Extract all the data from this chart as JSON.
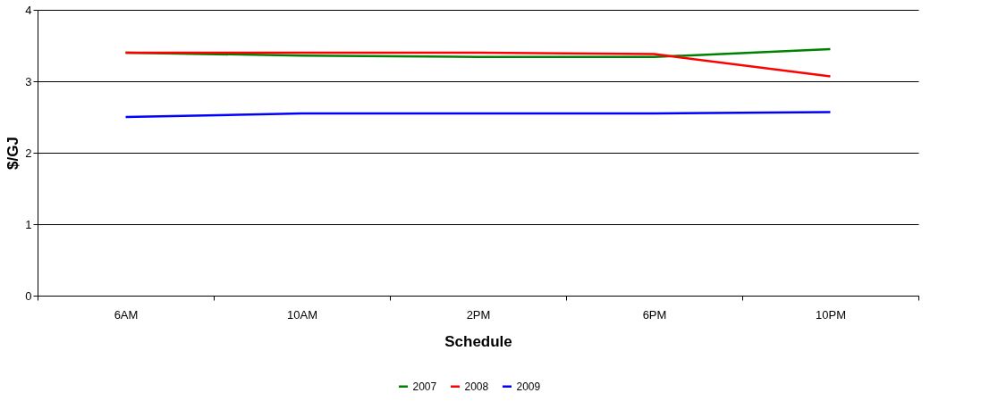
{
  "chart_data": {
    "type": "line",
    "xlabel": "Schedule",
    "ylabel": "$/GJ",
    "categories": [
      "6AM",
      "10AM",
      "2PM",
      "6PM",
      "10PM"
    ],
    "series": [
      {
        "name": "2007",
        "color": "#008000",
        "values": [
          3.4,
          3.36,
          3.34,
          3.34,
          3.45
        ]
      },
      {
        "name": "2008",
        "color": "#ff0000",
        "values": [
          3.4,
          3.4,
          3.4,
          3.38,
          3.07
        ]
      },
      {
        "name": "2009",
        "color": "#0000ff",
        "values": [
          2.5,
          2.55,
          2.55,
          2.55,
          2.57
        ]
      }
    ],
    "ylim": [
      0,
      4
    ],
    "yticks": [
      0,
      1,
      2,
      3,
      4
    ],
    "grid": "y",
    "legend": "bottom",
    "marker": "none",
    "line_style": "solid"
  }
}
